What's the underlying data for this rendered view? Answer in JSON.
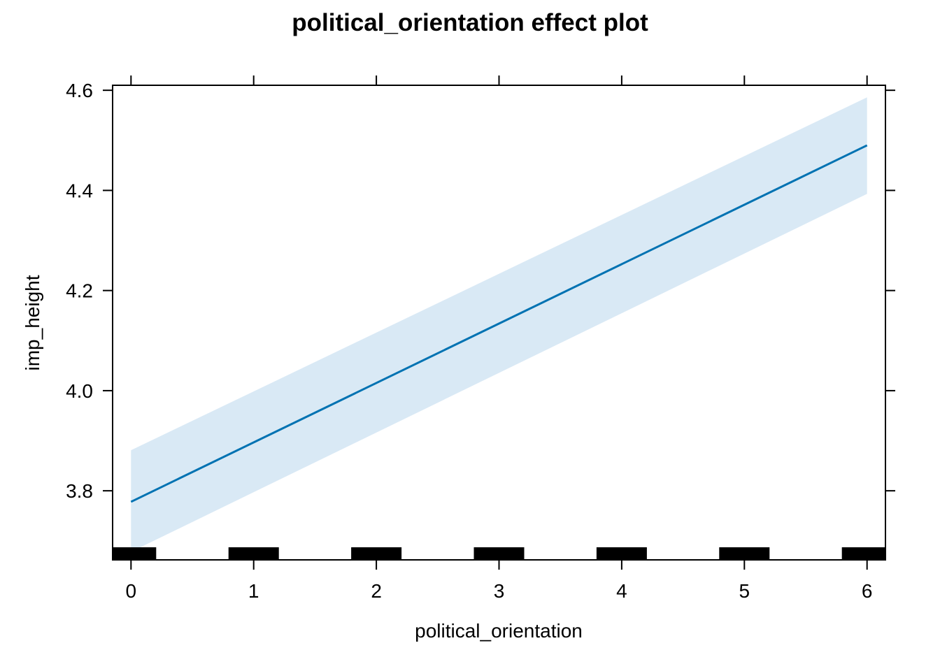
{
  "chart_data": {
    "type": "line",
    "title": "political_orientation effect plot",
    "xlabel": "political_orientation",
    "ylabel": "imp_height",
    "xlim": [
      -0.15,
      6.15
    ],
    "ylim": [
      3.662,
      4.61
    ],
    "x_ticks": [
      0,
      1,
      2,
      3,
      4,
      5,
      6
    ],
    "x_tick_labels": [
      "0",
      "1",
      "2",
      "3",
      "4",
      "5",
      "6"
    ],
    "y_ticks": [
      3.8,
      4.0,
      4.2,
      4.4,
      4.6
    ],
    "y_tick_labels": [
      "3.8",
      "4.0",
      "4.2",
      "4.4",
      "4.6"
    ],
    "grid": false,
    "series": [
      {
        "x": [
          0,
          6
        ],
        "y": [
          3.778,
          4.49
        ],
        "lower": [
          3.678,
          4.393
        ],
        "upper": [
          3.881,
          4.586
        ],
        "line_color": "#0072B2",
        "band_color": "#d9e9f5"
      }
    ],
    "rug": {
      "x": [
        0,
        1,
        2,
        3,
        4,
        5,
        6
      ],
      "color": "#000000"
    }
  }
}
